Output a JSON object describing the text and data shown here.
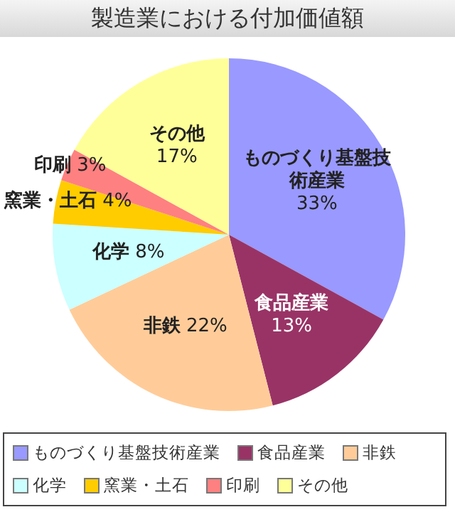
{
  "chart_data": {
    "type": "pie",
    "title": "製造業における付加価値額",
    "categories": [
      "ものづくり基盤技術産業",
      "食品産業",
      "非鉄",
      "化学",
      "窯業・土石",
      "印刷",
      "その他"
    ],
    "values": [
      33,
      13,
      22,
      8,
      4,
      3,
      17
    ],
    "value_labels": [
      "33%",
      "13%",
      "22%",
      "8%",
      "4%",
      "3%",
      "17%"
    ],
    "colors": [
      "#9999ff",
      "#993366",
      "#ffcc99",
      "#ccffff",
      "#ffcc00",
      "#ff8080",
      "#ffff99"
    ],
    "legend": "bottom"
  }
}
